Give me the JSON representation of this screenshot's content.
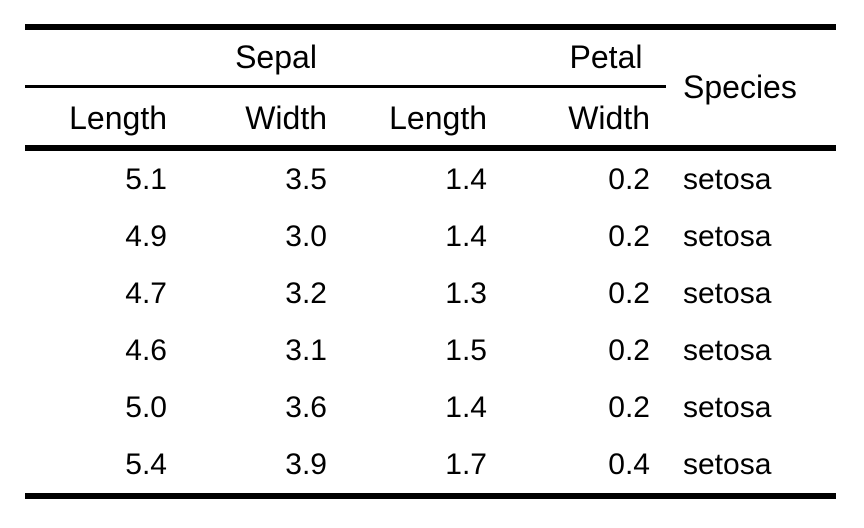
{
  "colors": {
    "background": "#ffffff",
    "text": "#000000",
    "rule": "#000000"
  },
  "chart_data": {
    "type": "table",
    "style": "booktabs",
    "spanners": [
      {
        "label": "Sepal",
        "columns": [
          "Length",
          "Width"
        ]
      },
      {
        "label": "Petal",
        "columns": [
          "Length",
          "Width"
        ]
      }
    ],
    "row_header": "Species",
    "column_labels": [
      "Length",
      "Width",
      "Length",
      "Width"
    ],
    "numeric_alignment": "right",
    "species_alignment": "left",
    "rows": [
      [
        "5.1",
        "3.5",
        "1.4",
        "0.2",
        "setosa"
      ],
      [
        "4.9",
        "3.0",
        "1.4",
        "0.2",
        "setosa"
      ],
      [
        "4.7",
        "3.2",
        "1.3",
        "0.2",
        "setosa"
      ],
      [
        "4.6",
        "3.1",
        "1.5",
        "0.2",
        "setosa"
      ],
      [
        "5.0",
        "3.6",
        "1.4",
        "0.2",
        "setosa"
      ],
      [
        "5.4",
        "3.9",
        "1.7",
        "0.4",
        "setosa"
      ]
    ]
  }
}
